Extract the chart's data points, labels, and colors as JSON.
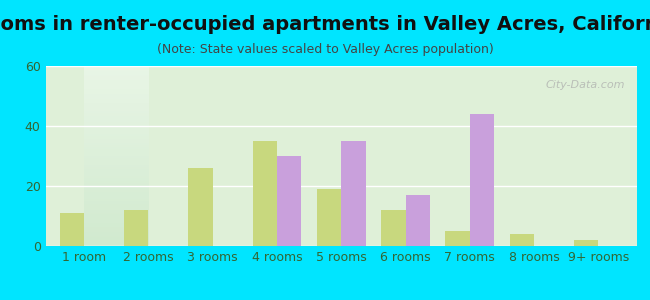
{
  "title": "Rooms in renter-occupied apartments in Valley Acres, California",
  "subtitle": "(Note: State values scaled to Valley Acres population)",
  "categories": [
    "1 room",
    "2 rooms",
    "3 rooms",
    "4 rooms",
    "5 rooms",
    "6 rooms",
    "7 rooms",
    "8 rooms",
    "9+ rooms"
  ],
  "valley_acres": [
    0,
    0,
    0,
    30,
    35,
    17,
    44,
    0,
    0
  ],
  "california": [
    11,
    12,
    26,
    35,
    19,
    12,
    5,
    4,
    2
  ],
  "valley_acres_color": "#c9a0dc",
  "california_color": "#c8d87e",
  "background_outer": "#00e5ff",
  "background_inner_top": "#e8f5e9",
  "background_inner_bottom": "#d4edda",
  "ylim": [
    0,
    60
  ],
  "yticks": [
    0,
    20,
    40,
    60
  ],
  "bar_width": 0.38,
  "title_fontsize": 14,
  "subtitle_fontsize": 9,
  "tick_fontsize": 9,
  "legend_fontsize": 10,
  "watermark": "City-Data.com"
}
